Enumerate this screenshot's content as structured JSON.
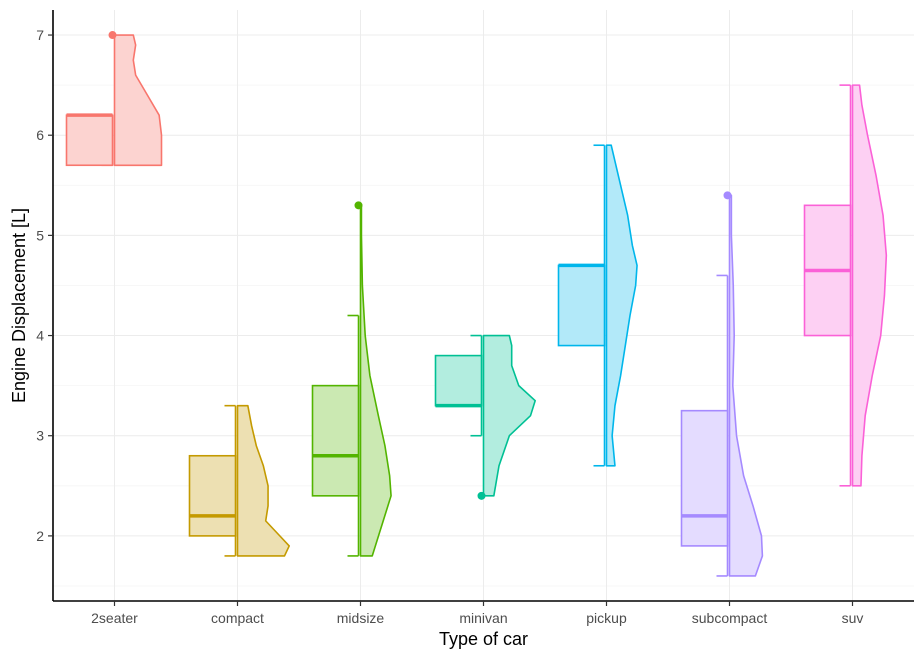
{
  "chart_data": {
    "type": "box",
    "variant": "half-box + half-violin (raincloud style)",
    "xlabel": "Type of car",
    "ylabel": "Engine Displacement [L]",
    "ylim": [
      1.35,
      7.25
    ],
    "yticks": [
      2,
      3,
      4,
      5,
      6,
      7
    ],
    "grid": true,
    "legend": "none",
    "categories": [
      "2seater",
      "compact",
      "midsize",
      "minivan",
      "pickup",
      "subcompact",
      "suv"
    ],
    "series": [
      {
        "name": "2seater",
        "color": "#F8766D",
        "fill": "#FCD3D0",
        "whisker_low": 5.7,
        "q1": 5.7,
        "median": 6.2,
        "q3": 6.2,
        "whisker_high": 6.2,
        "outliers": [
          7.0
        ],
        "violin": [
          [
            5.7,
            1.0
          ],
          [
            6.0,
            1.0
          ],
          [
            6.2,
            0.95
          ],
          [
            6.4,
            0.7
          ],
          [
            6.6,
            0.45
          ],
          [
            6.75,
            0.4
          ],
          [
            6.9,
            0.45
          ],
          [
            7.0,
            0.4
          ]
        ]
      },
      {
        "name": "compact",
        "color": "#C49A00",
        "fill": "#EDE0B2",
        "whisker_low": 1.8,
        "q1": 2.0,
        "median": 2.2,
        "q3": 2.8,
        "whisker_high": 3.3,
        "outliers": [],
        "violin": [
          [
            1.8,
            1.0
          ],
          [
            1.9,
            1.1
          ],
          [
            2.0,
            0.9
          ],
          [
            2.15,
            0.6
          ],
          [
            2.3,
            0.65
          ],
          [
            2.5,
            0.65
          ],
          [
            2.7,
            0.55
          ],
          [
            2.9,
            0.4
          ],
          [
            3.1,
            0.3
          ],
          [
            3.3,
            0.22
          ]
        ]
      },
      {
        "name": "midsize",
        "color": "#53B400",
        "fill": "#CBE9B2",
        "whisker_low": 1.8,
        "q1": 2.4,
        "median": 2.8,
        "q3": 3.5,
        "whisker_high": 4.2,
        "outliers": [
          5.3
        ],
        "violin": [
          [
            1.8,
            0.25
          ],
          [
            2.1,
            0.45
          ],
          [
            2.4,
            0.65
          ],
          [
            2.6,
            0.62
          ],
          [
            2.9,
            0.52
          ],
          [
            3.2,
            0.38
          ],
          [
            3.6,
            0.2
          ],
          [
            4.0,
            0.1
          ],
          [
            4.5,
            0.04
          ],
          [
            5.0,
            0.02
          ],
          [
            5.3,
            0.02
          ]
        ]
      },
      {
        "name": "minivan",
        "color": "#00C094",
        "fill": "#B2EDDF",
        "whisker_low": 3.0,
        "q1": 3.3,
        "median": 3.3,
        "q3": 3.8,
        "whisker_high": 4.0,
        "outliers": [
          2.4
        ],
        "violin": [
          [
            2.4,
            0.22
          ],
          [
            2.7,
            0.33
          ],
          [
            3.0,
            0.55
          ],
          [
            3.2,
            1.0
          ],
          [
            3.35,
            1.1
          ],
          [
            3.5,
            0.75
          ],
          [
            3.7,
            0.6
          ],
          [
            3.9,
            0.6
          ],
          [
            4.0,
            0.55
          ]
        ]
      },
      {
        "name": "pickup",
        "color": "#00B6EB",
        "fill": "#B2E9F9",
        "whisker_low": 2.7,
        "q1": 3.9,
        "median": 4.7,
        "q3": 4.7,
        "whisker_high": 5.9,
        "outliers": [],
        "violin": [
          [
            2.7,
            0.18
          ],
          [
            3.0,
            0.12
          ],
          [
            3.3,
            0.18
          ],
          [
            3.6,
            0.3
          ],
          [
            3.9,
            0.4
          ],
          [
            4.2,
            0.5
          ],
          [
            4.5,
            0.62
          ],
          [
            4.7,
            0.65
          ],
          [
            4.9,
            0.55
          ],
          [
            5.2,
            0.45
          ],
          [
            5.5,
            0.3
          ],
          [
            5.9,
            0.1
          ]
        ]
      },
      {
        "name": "subcompact",
        "color": "#A58AFF",
        "fill": "#E4DCFF",
        "whisker_low": 1.6,
        "q1": 1.9,
        "median": 2.2,
        "q3": 3.25,
        "whisker_high": 4.6,
        "outliers": [
          5.4
        ],
        "violin": [
          [
            1.6,
            0.55
          ],
          [
            1.8,
            0.7
          ],
          [
            2.0,
            0.68
          ],
          [
            2.3,
            0.5
          ],
          [
            2.6,
            0.3
          ],
          [
            3.0,
            0.15
          ],
          [
            3.5,
            0.07
          ],
          [
            4.0,
            0.1
          ],
          [
            4.5,
            0.08
          ],
          [
            5.0,
            0.04
          ],
          [
            5.4,
            0.04
          ]
        ]
      },
      {
        "name": "suv",
        "color": "#FB61D7",
        "fill": "#FDD0F3",
        "whisker_low": 2.5,
        "q1": 4.0,
        "median": 4.65,
        "q3": 5.3,
        "whisker_high": 6.5,
        "outliers": [],
        "violin": [
          [
            2.5,
            0.18
          ],
          [
            2.8,
            0.2
          ],
          [
            3.2,
            0.27
          ],
          [
            3.6,
            0.42
          ],
          [
            4.0,
            0.6
          ],
          [
            4.4,
            0.68
          ],
          [
            4.8,
            0.72
          ],
          [
            5.2,
            0.65
          ],
          [
            5.6,
            0.5
          ],
          [
            6.0,
            0.32
          ],
          [
            6.3,
            0.2
          ],
          [
            6.5,
            0.15
          ]
        ]
      }
    ]
  }
}
